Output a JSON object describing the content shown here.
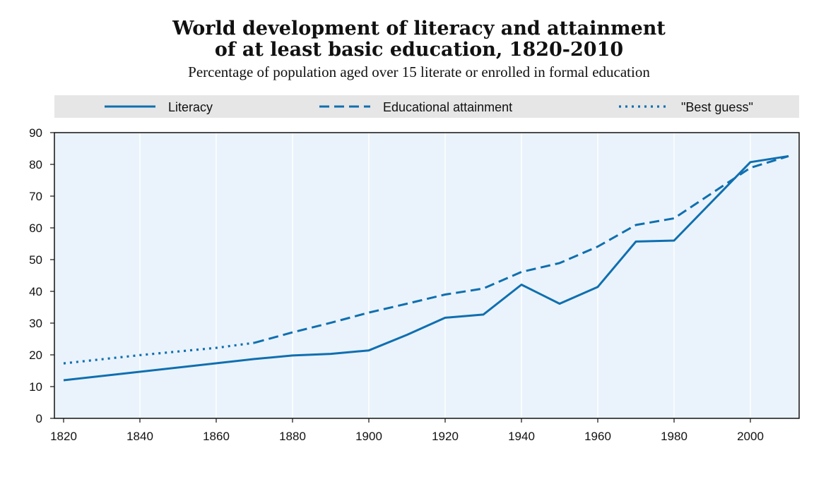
{
  "chart_data": {
    "type": "line",
    "title_line1": "World development of literacy and attainment",
    "title_line2": "of at least basic education, 1820-2010",
    "subtitle": "Percentage of population aged over 15 literate or enrolled in formal education",
    "xlabel": "",
    "ylabel": "",
    "xlim": [
      1820,
      2010
    ],
    "ylim": [
      0,
      90
    ],
    "x_ticks": [
      1820,
      1840,
      1860,
      1880,
      1900,
      1920,
      1940,
      1960,
      1980,
      2000
    ],
    "y_ticks": [
      0,
      10,
      20,
      30,
      40,
      50,
      60,
      70,
      80,
      90
    ],
    "grid": "vertical",
    "legend_position": "top",
    "colors": {
      "series": "#0f6fb0",
      "plot_background": "#eaf3fb",
      "legend_background": "#e6e6e6",
      "grid": "#ffffff"
    },
    "series": [
      {
        "name": "Literacy",
        "style": "solid",
        "points": [
          [
            1820,
            12
          ],
          [
            1870,
            18.7
          ],
          [
            1880,
            19.8
          ],
          [
            1890,
            20.3
          ],
          [
            1900,
            21.4
          ],
          [
            1910,
            26.3
          ],
          [
            1920,
            31.7
          ],
          [
            1930,
            32.7
          ],
          [
            1940,
            42.1
          ],
          [
            1950,
            36.1
          ],
          [
            1960,
            41.4
          ],
          [
            1970,
            55.7
          ],
          [
            1980,
            56
          ],
          [
            2000,
            80.7
          ],
          [
            2010,
            82.6
          ]
        ]
      },
      {
        "name": "Educational attainment",
        "style": "dashed",
        "points": [
          [
            1870,
            23.8
          ],
          [
            1880,
            27.1
          ],
          [
            1890,
            30.1
          ],
          [
            1900,
            33.3
          ],
          [
            1910,
            36.1
          ],
          [
            1920,
            39
          ],
          [
            1930,
            40.9
          ],
          [
            1940,
            46.1
          ],
          [
            1950,
            48.9
          ],
          [
            1960,
            54.1
          ],
          [
            1970,
            60.9
          ],
          [
            1980,
            63
          ],
          [
            1990,
            71
          ],
          [
            2000,
            78.9
          ],
          [
            2010,
            82.6
          ]
        ]
      },
      {
        "name": "\"Best guess\"",
        "style": "dotted",
        "points": [
          [
            1820,
            17.3
          ],
          [
            1840,
            19.9
          ],
          [
            1860,
            22.2
          ],
          [
            1870,
            23.8
          ]
        ]
      }
    ]
  }
}
